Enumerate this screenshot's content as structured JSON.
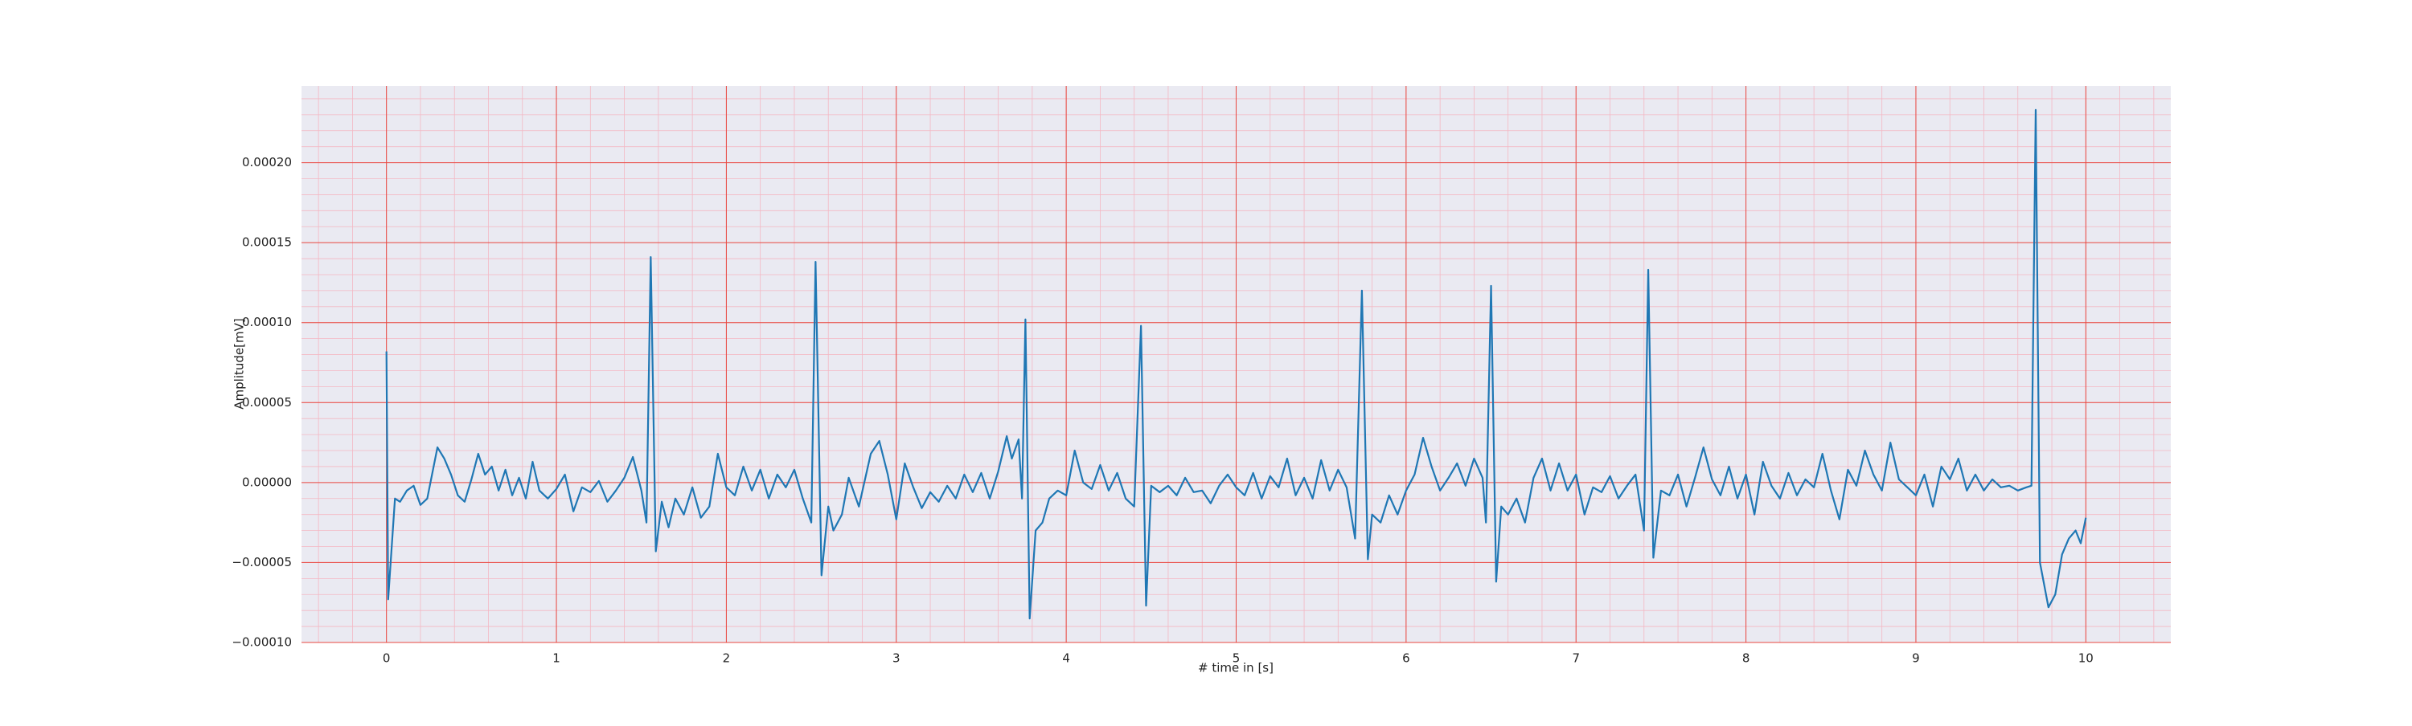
{
  "chart_data": {
    "type": "line",
    "xlabel": "# time in [s]",
    "ylabel": "Amplitude[mV]",
    "xlim": [
      -0.5,
      10.5
    ],
    "ylim": [
      -0.0001,
      0.000248
    ],
    "xticks": [
      0,
      1,
      2,
      3,
      4,
      5,
      6,
      7,
      8,
      9,
      10
    ],
    "yticks": [
      {
        "value": -0.0001,
        "label": "−0.00010"
      },
      {
        "value": -5e-05,
        "label": "−0.00005"
      },
      {
        "value": 0,
        "label": "0.00000"
      },
      {
        "value": 5e-05,
        "label": "0.00005"
      },
      {
        "value": 0.0001,
        "label": "0.00010"
      },
      {
        "value": 0.00015,
        "label": "0.00015"
      },
      {
        "value": 0.0002,
        "label": "0.00020"
      }
    ],
    "grid": true,
    "minor_grid": true,
    "background": "#eaeaf2",
    "grid_color": "#e8473f",
    "minor_grid_color": "#f4b7c3",
    "series": [
      {
        "color": "#1f77b4",
        "x": [
          0,
          0.01,
          0.05,
          0.08,
          0.12,
          0.16,
          0.2,
          0.24,
          0.3,
          0.34,
          0.38,
          0.42,
          0.46,
          0.5,
          0.54,
          0.58,
          0.62,
          0.66,
          0.7,
          0.74,
          0.78,
          0.82,
          0.86,
          0.9,
          0.95,
          1.0,
          1.05,
          1.1,
          1.15,
          1.2,
          1.25,
          1.3,
          1.35,
          1.4,
          1.45,
          1.5,
          1.53,
          1.555,
          1.585,
          1.62,
          1.66,
          1.7,
          1.75,
          1.8,
          1.85,
          1.9,
          1.95,
          2.0,
          2.05,
          2.1,
          2.15,
          2.2,
          2.25,
          2.3,
          2.35,
          2.4,
          2.45,
          2.5,
          2.525,
          2.56,
          2.6,
          2.63,
          2.68,
          2.72,
          2.78,
          2.85,
          2.9,
          2.95,
          3.0,
          3.05,
          3.1,
          3.15,
          3.2,
          3.25,
          3.3,
          3.35,
          3.4,
          3.45,
          3.5,
          3.55,
          3.6,
          3.65,
          3.68,
          3.72,
          3.74,
          3.76,
          3.785,
          3.82,
          3.86,
          3.9,
          3.95,
          4.0,
          4.05,
          4.1,
          4.15,
          4.2,
          4.25,
          4.3,
          4.35,
          4.4,
          4.44,
          4.47,
          4.5,
          4.55,
          4.6,
          4.65,
          4.7,
          4.75,
          4.8,
          4.85,
          4.9,
          4.95,
          5.0,
          5.05,
          5.1,
          5.15,
          5.2,
          5.25,
          5.3,
          5.35,
          5.4,
          5.45,
          5.5,
          5.55,
          5.6,
          5.65,
          5.7,
          5.74,
          5.775,
          5.8,
          5.85,
          5.9,
          5.95,
          6.0,
          6.05,
          6.1,
          6.15,
          6.2,
          6.25,
          6.3,
          6.35,
          6.4,
          6.45,
          6.47,
          6.5,
          6.53,
          6.56,
          6.6,
          6.65,
          6.7,
          6.75,
          6.8,
          6.85,
          6.9,
          6.95,
          7.0,
          7.05,
          7.1,
          7.15,
          7.2,
          7.25,
          7.3,
          7.35,
          7.4,
          7.425,
          7.455,
          7.5,
          7.55,
          7.6,
          7.65,
          7.7,
          7.75,
          7.8,
          7.85,
          7.9,
          7.95,
          8.0,
          8.05,
          8.1,
          8.15,
          8.2,
          8.25,
          8.3,
          8.35,
          8.4,
          8.45,
          8.5,
          8.55,
          8.6,
          8.65,
          8.7,
          8.75,
          8.8,
          8.85,
          8.9,
          8.95,
          9.0,
          9.05,
          9.1,
          9.15,
          9.2,
          9.25,
          9.3,
          9.35,
          9.4,
          9.45,
          9.5,
          9.55,
          9.6,
          9.65,
          9.68,
          9.705,
          9.73,
          9.78,
          9.82,
          9.86,
          9.9,
          9.94,
          9.97,
          10.0
        ],
        "values": [
          8.2e-05,
          -7.3e-05,
          -1e-05,
          -1.2e-05,
          -5e-06,
          -2e-06,
          -1.4e-05,
          -1e-05,
          2.2e-05,
          1.5e-05,
          5e-06,
          -8e-06,
          -1.2e-05,
          2e-06,
          1.8e-05,
          5e-06,
          1e-05,
          -5e-06,
          8e-06,
          -8e-06,
          3e-06,
          -1e-05,
          1.3e-05,
          -5e-06,
          -1e-05,
          -4e-06,
          5e-06,
          -1.8e-05,
          -3e-06,
          -6e-06,
          1e-06,
          -1.2e-05,
          -5e-06,
          3e-06,
          1.6e-05,
          -5e-06,
          -2.5e-05,
          0.000141,
          -4.3e-05,
          -1.2e-05,
          -2.8e-05,
          -1e-05,
          -2e-05,
          -3e-06,
          -2.2e-05,
          -1.5e-05,
          1.8e-05,
          -3e-06,
          -8e-06,
          1e-05,
          -5e-06,
          8e-06,
          -1e-05,
          5e-06,
          -3e-06,
          8e-06,
          -1e-05,
          -2.5e-05,
          0.000138,
          -5.8e-05,
          -1.5e-05,
          -3e-05,
          -2e-05,
          3e-06,
          -1.5e-05,
          1.8e-05,
          2.6e-05,
          5e-06,
          -2.3e-05,
          1.2e-05,
          -3e-06,
          -1.6e-05,
          -6e-06,
          -1.2e-05,
          -2e-06,
          -1e-05,
          5e-06,
          -6e-06,
          6e-06,
          -1e-05,
          7e-06,
          2.9e-05,
          1.5e-05,
          2.7e-05,
          -1e-05,
          0.000102,
          -8.5e-05,
          -3e-05,
          -2.5e-05,
          -1e-05,
          -5e-06,
          -8e-06,
          2e-05,
          0,
          -4e-06,
          1.1e-05,
          -5e-06,
          6e-06,
          -1e-05,
          -1.5e-05,
          9.8e-05,
          -7.7e-05,
          -2e-06,
          -6e-06,
          -2e-06,
          -8e-06,
          3e-06,
          -6e-06,
          -5e-06,
          -1.3e-05,
          -2e-06,
          5e-06,
          -3e-06,
          -8e-06,
          6e-06,
          -1e-05,
          4e-06,
          -3e-06,
          1.5e-05,
          -8e-06,
          3e-06,
          -1e-05,
          1.4e-05,
          -5e-06,
          8e-06,
          -3e-06,
          -3.5e-05,
          0.00012,
          -4.8e-05,
          -2e-05,
          -2.5e-05,
          -8e-06,
          -2e-05,
          -5e-06,
          5e-06,
          2.8e-05,
          1e-05,
          -5e-06,
          3e-06,
          1.2e-05,
          -2e-06,
          1.5e-05,
          3e-06,
          -2.5e-05,
          0.000123,
          -6.2e-05,
          -1.5e-05,
          -2e-05,
          -1e-05,
          -2.5e-05,
          3e-06,
          1.5e-05,
          -5e-06,
          1.2e-05,
          -5e-06,
          5e-06,
          -2e-05,
          -3e-06,
          -6e-06,
          4e-06,
          -1e-05,
          -2e-06,
          5e-06,
          -3e-05,
          0.000133,
          -4.7e-05,
          -5e-06,
          -8e-06,
          5e-06,
          -1.5e-05,
          3e-06,
          2.2e-05,
          2e-06,
          -8e-06,
          1e-05,
          -1e-05,
          5e-06,
          -2e-05,
          1.3e-05,
          -2e-06,
          -1e-05,
          6e-06,
          -8e-06,
          2e-06,
          -3e-06,
          1.8e-05,
          -5e-06,
          -2.3e-05,
          8e-06,
          -2e-06,
          2e-05,
          5e-06,
          -5e-06,
          2.5e-05,
          2e-06,
          -3e-06,
          -8e-06,
          5e-06,
          -1.5e-05,
          1e-05,
          2e-06,
          1.5e-05,
          -5e-06,
          5e-06,
          -5e-06,
          2e-06,
          -3e-06,
          -2e-06,
          -5e-06,
          -3e-06,
          -2e-06,
          0.000233,
          -5e-05,
          -7.8e-05,
          -7e-05,
          -4.5e-05,
          -3.5e-05,
          -3e-05,
          -3.8e-05,
          -2.2e-05
        ]
      }
    ]
  }
}
